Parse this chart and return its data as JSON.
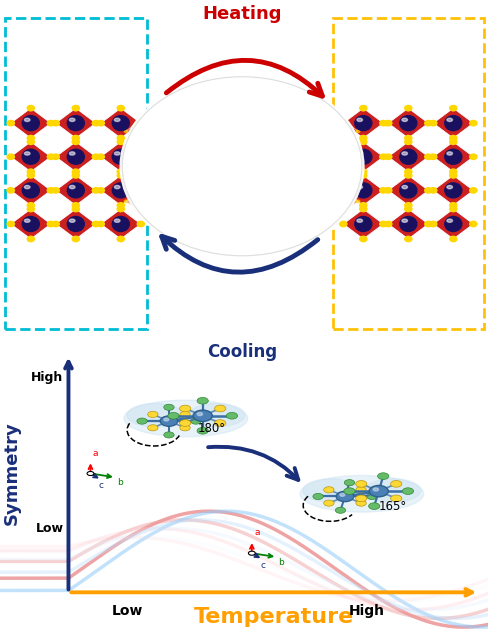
{
  "fig_width": 4.89,
  "fig_height": 6.3,
  "dpi": 100,
  "bg_color": "#ffffff",
  "top": {
    "heating_text": "Heating",
    "cooling_text": "Cooling",
    "heating_color": "#cc0000",
    "cooling_color": "#1a2f7a",
    "left_box_color": "#00bcd4",
    "right_box_color": "#ffc107",
    "oct_color": "#cc2020",
    "vertex_color": "#ffd700",
    "atom_color": "#1a1060",
    "atom_highlight": "#ffffff"
  },
  "bottom": {
    "x_label": "Temperature",
    "y_label": "Symmetry",
    "x_label_color": "#ffa000",
    "y_label_color": "#1a2f7a",
    "axis_color": "#1a2f7a",
    "x_low": "Low",
    "x_high": "High",
    "y_low": "Low",
    "y_high": "High",
    "angle_high": "180°",
    "angle_low": "165°",
    "arrow_color": "#1a2f7a",
    "center_atom_color": "#4a80b5",
    "green_atom_color": "#66bb6a",
    "yellow_atom_color": "#fdd835",
    "bond_color": "#3a70a5",
    "shadow_color": "#c5dff0"
  }
}
